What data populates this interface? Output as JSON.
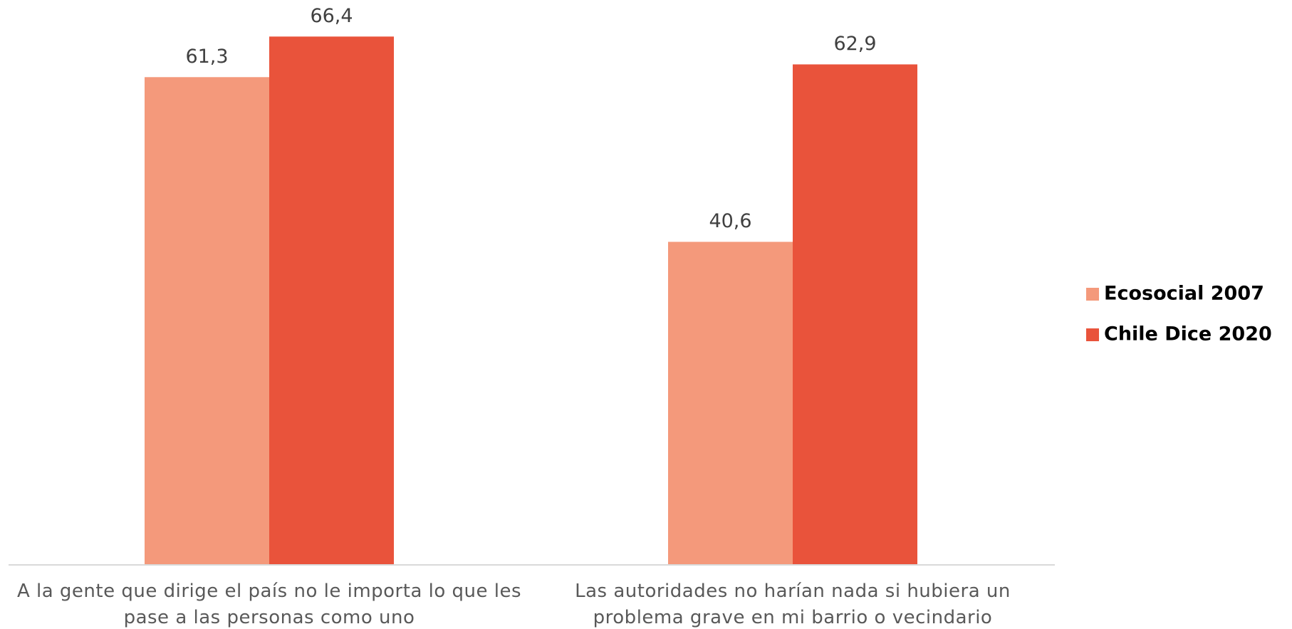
{
  "chart_data": {
    "type": "bar",
    "categories": [
      "A la gente que dirige el país no le importa  lo que les pase a las personas como uno",
      "Las autoridades no harían nada si hubiera un problema grave en mi barrio o vecindario"
    ],
    "series": [
      {
        "name": "Ecosocial 2007",
        "color": "#f4997b",
        "values": [
          61.3,
          40.6
        ],
        "value_labels": [
          "61,3",
          "40,6"
        ]
      },
      {
        "name": "Chile Dice 2020",
        "color": "#e9533b",
        "values": [
          66.4,
          62.9
        ],
        "value_labels": [
          "66,4",
          "62,9"
        ]
      }
    ],
    "legend": "right"
  }
}
